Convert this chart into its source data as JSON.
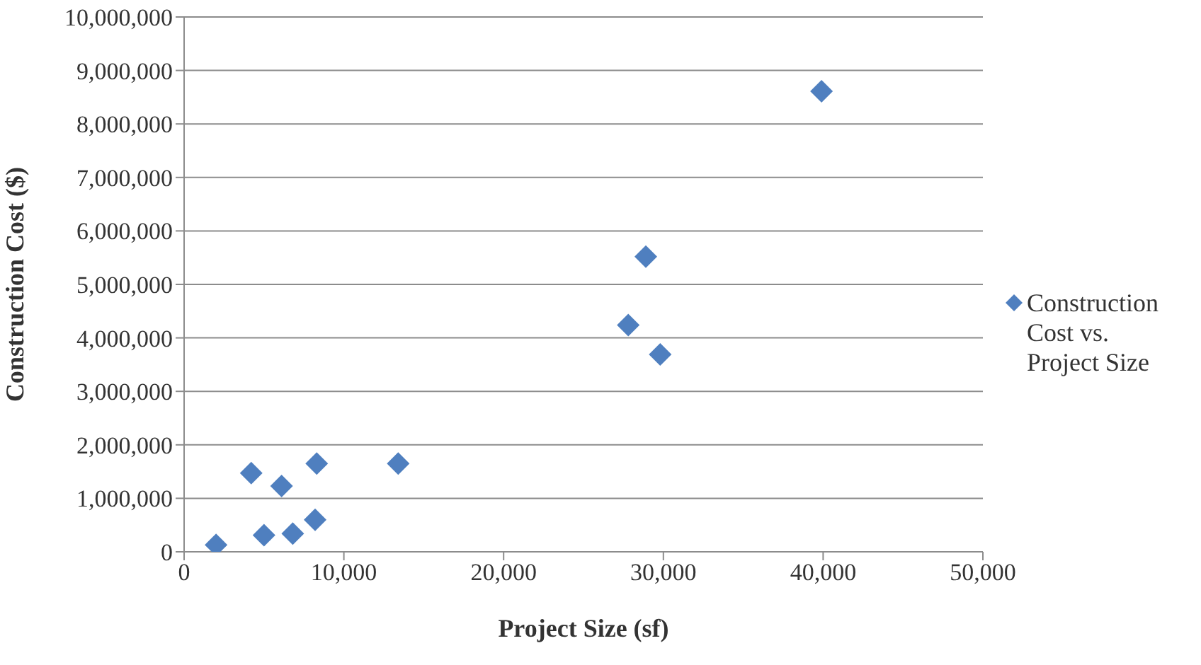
{
  "chart_data": {
    "type": "scatter",
    "xlabel": "Project Size (sf)",
    "ylabel": "Construction Cost ($)",
    "xlim": [
      0,
      50000
    ],
    "xticks": [
      {
        "value": 0,
        "label": "0"
      },
      {
        "value": 10000,
        "label": "10,000"
      },
      {
        "value": 20000,
        "label": "20,000"
      },
      {
        "value": 30000,
        "label": "30,000"
      },
      {
        "value": 40000,
        "label": "40,000"
      },
      {
        "value": 50000,
        "label": "50,000"
      }
    ],
    "ylim": [
      0,
      10000000
    ],
    "yticks": [
      {
        "value": 0,
        "label": "0"
      },
      {
        "value": 1000000,
        "label": "1,000,000"
      },
      {
        "value": 2000000,
        "label": "2,000,000"
      },
      {
        "value": 3000000,
        "label": "3,000,000"
      },
      {
        "value": 4000000,
        "label": "4,000,000"
      },
      {
        "value": 5000000,
        "label": "5,000,000"
      },
      {
        "value": 6000000,
        "label": "6,000,000"
      },
      {
        "value": 7000000,
        "label": "7,000,000"
      },
      {
        "value": 8000000,
        "label": "8,000,000"
      },
      {
        "value": 9000000,
        "label": "9,000,000"
      },
      {
        "value": 10000000,
        "label": "10,000,000"
      }
    ],
    "grid": "y",
    "legend": "right",
    "marker": "diamond",
    "series": [
      {
        "name": "Construction Cost vs. Project Size",
        "color": "#4f7fbf",
        "x": [
          2000,
          4200,
          5000,
          6100,
          6800,
          8200,
          8300,
          13400,
          27800,
          28900,
          29800,
          39900
        ],
        "values": [
          130000,
          1470000,
          310000,
          1230000,
          340000,
          600000,
          1650000,
          1650000,
          4240000,
          5520000,
          3690000,
          8610000
        ]
      }
    ]
  }
}
